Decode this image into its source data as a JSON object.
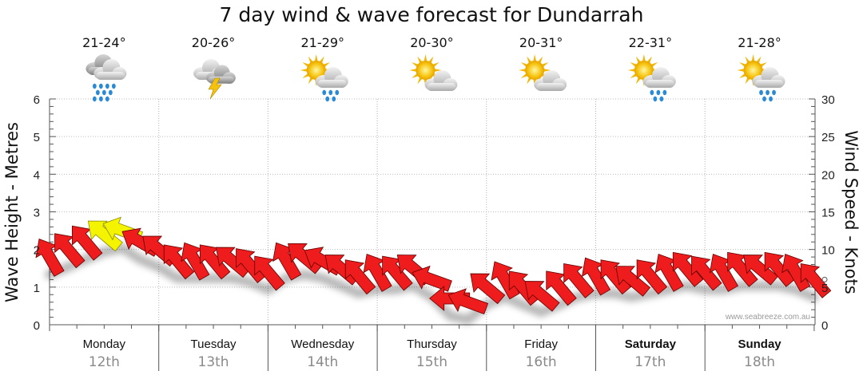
{
  "chart_data": {
    "type": "wind-wave-forecast",
    "title": "7 day wind & wave forecast for Dundarrah",
    "ylabel_left": "Wave Height - Metres",
    "ylabel_right": "Wind Speed - Knots",
    "ylim_left": [
      0,
      6
    ],
    "ylim_right": [
      0,
      30
    ],
    "yticks_left": [
      "0",
      "1",
      "2",
      "3",
      "4",
      "5",
      "6"
    ],
    "yticks_right": [
      "0",
      "5",
      "10",
      "15",
      "20",
      "25",
      "30"
    ],
    "watermark": "www.seabreeze.com.au",
    "days": [
      {
        "name": "Monday",
        "date": "12th",
        "temp": "21-24°",
        "icon": "rain-cloud-icon",
        "bold": false
      },
      {
        "name": "Tuesday",
        "date": "13th",
        "temp": "20-26°",
        "icon": "thunderstorm-icon",
        "bold": false
      },
      {
        "name": "Wednesday",
        "date": "14th",
        "temp": "21-29°",
        "icon": "sun-cloud-rain-icon",
        "bold": false
      },
      {
        "name": "Thursday",
        "date": "15th",
        "temp": "20-30°",
        "icon": "sun-cloud-icon",
        "bold": false
      },
      {
        "name": "Friday",
        "date": "16th",
        "temp": "20-31°",
        "icon": "sun-cloud-icon",
        "bold": false
      },
      {
        "name": "Saturday",
        "date": "17th",
        "temp": "22-31°",
        "icon": "sun-cloud-rain-icon",
        "bold": true
      },
      {
        "name": "Sunday",
        "date": "18th",
        "temp": "21-28°",
        "icon": "sun-cloud-rain-icon",
        "bold": true
      }
    ],
    "wind_series": {
      "name": "Wind arrows (knots)",
      "x_days": [
        0.0,
        0.17,
        0.33,
        0.5,
        0.67,
        0.83,
        1.0,
        1.17,
        1.33,
        1.5,
        1.67,
        1.83,
        2.0,
        2.17,
        2.33,
        2.5,
        2.67,
        2.83,
        3.0,
        3.17,
        3.33,
        3.5,
        3.67,
        3.83,
        4.0,
        4.17,
        4.33,
        4.5,
        4.67,
        4.83,
        5.0,
        5.17,
        5.33,
        5.5,
        5.67,
        5.83,
        6.0,
        6.17,
        6.33,
        6.5,
        6.67,
        6.83,
        7.0
      ],
      "knots": [
        9,
        10,
        11,
        12,
        12.5,
        11,
        10,
        8.5,
        8.5,
        8.5,
        8.5,
        8,
        7,
        8.5,
        9,
        8.5,
        7.5,
        6.5,
        7,
        7,
        7.5,
        6,
        3.5,
        3,
        5,
        6,
        5,
        4,
        5,
        6,
        6.5,
        6.5,
        6,
        6.5,
        7,
        7.5,
        7,
        7,
        7.5,
        7.5,
        7.5,
        7,
        6
      ],
      "direction_deg": [
        240,
        230,
        230,
        220,
        200,
        210,
        220,
        230,
        240,
        230,
        220,
        230,
        230,
        240,
        220,
        210,
        220,
        230,
        240,
        230,
        220,
        200,
        180,
        200,
        220,
        240,
        230,
        220,
        230,
        230,
        240,
        230,
        220,
        230,
        240,
        230,
        230,
        240,
        230,
        220,
        230,
        240,
        230
      ]
    }
  }
}
